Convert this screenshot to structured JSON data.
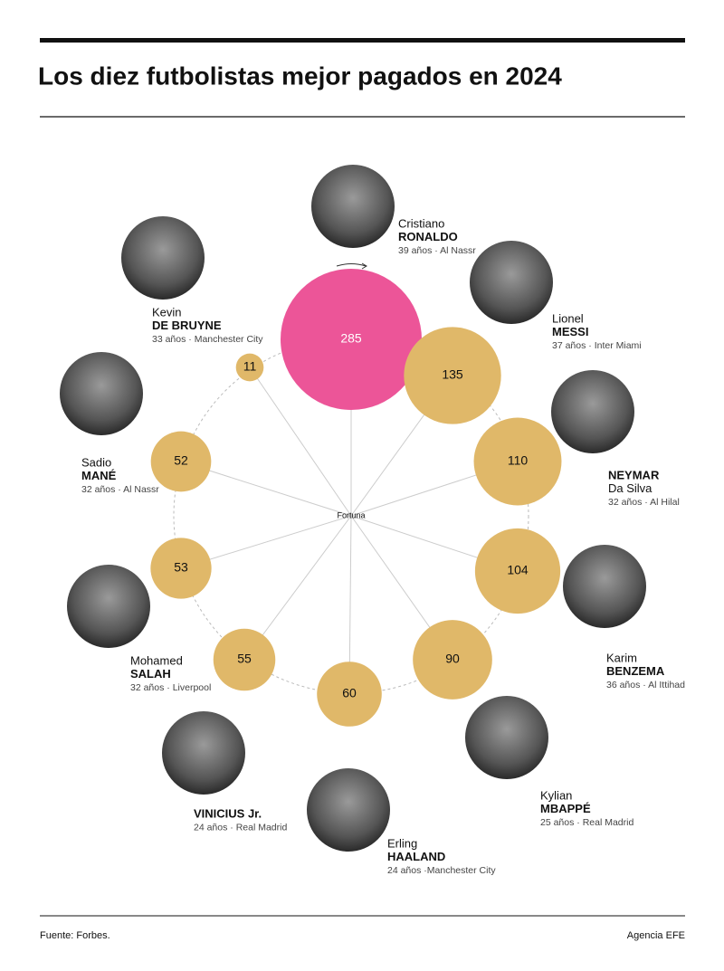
{
  "chart_data": {
    "type": "bubble",
    "title": "Los diez futbolistas mejor pagados en 2024",
    "center_label": "Fortuna",
    "source": "Fuente: Forbes.",
    "credit": "Agencia EFE",
    "players": [
      {
        "name": [
          "Cristiano",
          "RONALDO"
        ],
        "bold": [
          false,
          true
        ],
        "info": "39 años · Al Nassr"
      },
      {
        "name": [
          "Lionel",
          "MESSI"
        ],
        "bold": [
          false,
          true
        ],
        "info": "37 años · Inter Miami"
      },
      {
        "name": [
          "NEYMAR",
          "Da Silva"
        ],
        "bold": [
          true,
          false
        ],
        "info": "32 años · Al Hilal"
      },
      {
        "name": [
          "Karim",
          "BENZEMA"
        ],
        "bold": [
          false,
          true
        ],
        "info": "36 años · Al Ittihad"
      },
      {
        "name": [
          "Kylian",
          "MBAPPÉ"
        ],
        "bold": [
          false,
          true
        ],
        "info": "25 años · Real Madrid"
      },
      {
        "name": [
          "Erling",
          "HAALAND"
        ],
        "bold": [
          false,
          true
        ],
        "info": "24 años ·Manchester City"
      },
      {
        "name": [
          "VINICIUS Jr."
        ],
        "bold": [
          true
        ],
        "info": "24 años · Real Madrid"
      },
      {
        "name": [
          "Mohamed",
          "SALAH"
        ],
        "bold": [
          false,
          true
        ],
        "info": "32 años · Liverpool"
      },
      {
        "name": [
          "Sadio",
          "MANÉ"
        ],
        "bold": [
          false,
          true
        ],
        "info": "32 años · Al Nassr"
      },
      {
        "name": [
          "Kevin",
          "DE BRUYNE"
        ],
        "bold": [
          false,
          true
        ],
        "info": "33 años · Manchester City"
      }
    ],
    "values": [
      285,
      135,
      110,
      104,
      90,
      60,
      55,
      53,
      52,
      11
    ],
    "colors": [
      "#ec5598",
      "#e0b869",
      "#e0b869",
      "#e0b869",
      "#e0b869",
      "#e0b869",
      "#e0b869",
      "#e0b869",
      "#e0b869",
      "#e0b869"
    ]
  }
}
